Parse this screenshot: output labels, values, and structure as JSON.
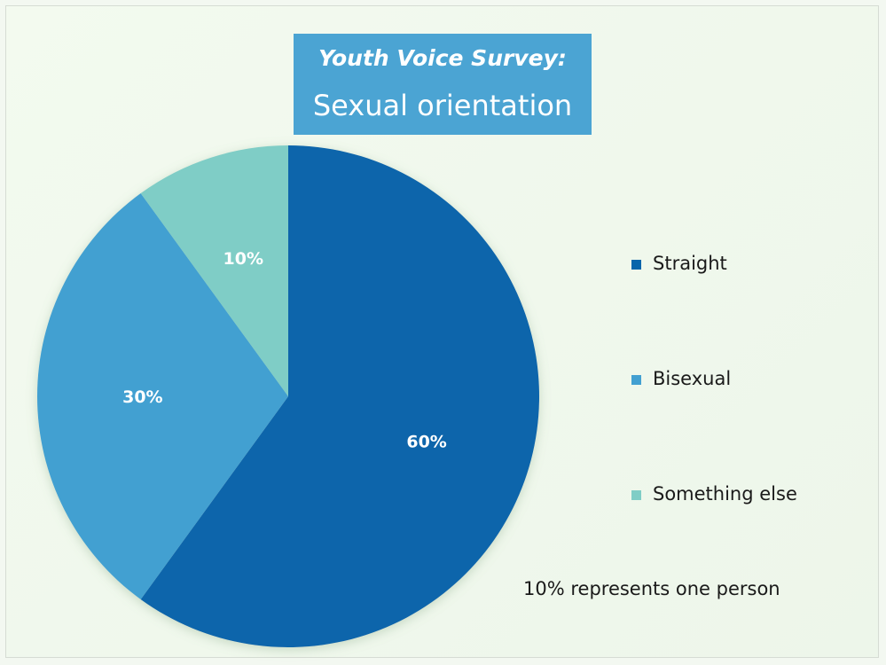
{
  "chart_data": {
    "type": "pie",
    "title": "Youth Voice Survey:",
    "subtitle": "Sexual orientation",
    "categories": [
      "Straight",
      "Bisexual",
      "Something else"
    ],
    "values": [
      60,
      30,
      10
    ],
    "value_labels": [
      "60%",
      "30%",
      "10%"
    ],
    "colors": [
      "#0865ab",
      "#42a0d1",
      "#7fcdc6"
    ],
    "legend_position": "right",
    "annotation": "10% represents one person"
  }
}
